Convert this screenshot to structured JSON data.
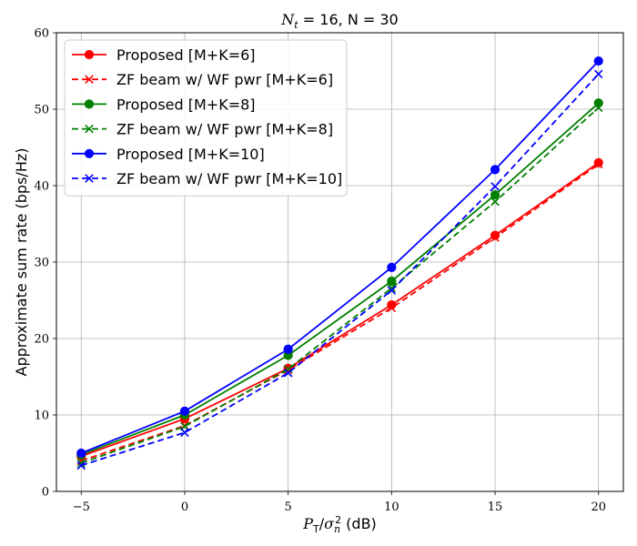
{
  "chart_data": {
    "type": "line",
    "title": "N_t = 16, N = 30",
    "xlabel": "P_T/σ_n^2 (dB)",
    "ylabel": "Approximate sum rate (bps/Hz)",
    "x": [
      -5,
      0,
      5,
      10,
      15,
      20
    ],
    "xlim": [
      -6.2,
      21.2
    ],
    "ylim": [
      0,
      60
    ],
    "xticks": [
      -5,
      0,
      5,
      10,
      15,
      20
    ],
    "yticks": [
      0,
      10,
      20,
      30,
      40,
      50,
      60
    ],
    "grid": true,
    "legend_position": "top-left",
    "series": [
      {
        "name": "Proposed [M+K=6]",
        "color": "#ff0000",
        "dash": false,
        "marker": "circle",
        "values": [
          4.6,
          9.5,
          16.1,
          24.4,
          33.5,
          43.0
        ]
      },
      {
        "name": "ZF beam w/ WF pwr [M+K=6]",
        "color": "#ff0000",
        "dash": true,
        "marker": "x",
        "values": [
          4.0,
          8.6,
          15.9,
          24.0,
          33.2,
          42.8
        ]
      },
      {
        "name": "Proposed [M+K=8]",
        "color": "#008000",
        "dash": false,
        "marker": "circle",
        "values": [
          4.8,
          10.0,
          17.8,
          27.5,
          38.8,
          50.8
        ]
      },
      {
        "name": "ZF beam w/ WF pwr [M+K=8]",
        "color": "#008000",
        "dash": true,
        "marker": "x",
        "values": [
          3.7,
          8.5,
          16.0,
          26.6,
          37.9,
          50.2
        ]
      },
      {
        "name": "Proposed [M+K=10]",
        "color": "#0000ff",
        "dash": false,
        "marker": "circle",
        "values": [
          5.0,
          10.5,
          18.6,
          29.3,
          42.1,
          56.3
        ]
      },
      {
        "name": "ZF beam w/ WF pwr [M+K=10]",
        "color": "#0000ff",
        "dash": true,
        "marker": "x",
        "values": [
          3.4,
          7.7,
          15.5,
          26.3,
          39.9,
          54.6
        ]
      }
    ]
  }
}
